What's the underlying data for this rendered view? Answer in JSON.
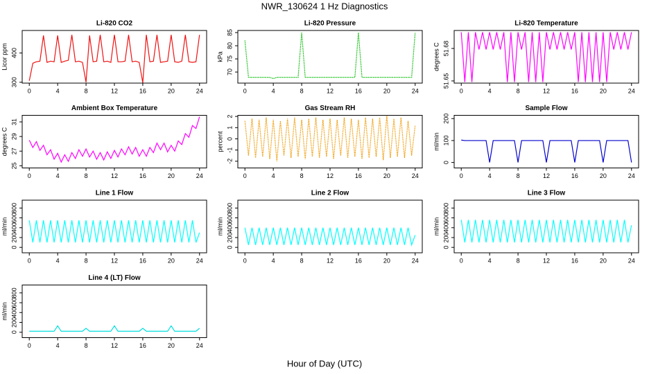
{
  "title": "NWR_130624  1 Hz Diagnostics",
  "xlabel": "Hour of Day (UTC)",
  "chart_data": [
    {
      "type": "line",
      "title": "Li-820 CO2",
      "ylabel": "Licor ppm",
      "color": "#ee1111",
      "x": [
        0,
        0.5,
        1,
        1.5,
        2,
        2.5,
        3,
        3.5,
        4,
        4.5,
        5,
        5.5,
        6,
        6.5,
        7,
        7.5,
        8,
        8.5,
        9,
        9.5,
        10,
        10.5,
        11,
        11.5,
        12,
        12.5,
        13,
        13.5,
        14,
        14.5,
        15,
        15.5,
        16,
        16.5,
        17,
        17.5,
        18,
        18.5,
        19,
        19.5,
        20,
        20.5,
        21,
        21.5,
        22,
        22.5,
        23,
        23.5,
        24
      ],
      "values": [
        305,
        365,
        370,
        372,
        460,
        368,
        372,
        370,
        460,
        368,
        372,
        375,
        462,
        370,
        372,
        368,
        300,
        460,
        370,
        372,
        462,
        370,
        372,
        368,
        462,
        370,
        370,
        372,
        462,
        370,
        372,
        368,
        298,
        462,
        370,
        372,
        462,
        368,
        370,
        372,
        462,
        370,
        368,
        372,
        462,
        370,
        368,
        370,
        462
      ],
      "xlim": [
        -1,
        25
      ],
      "xticks": [
        0,
        4,
        8,
        12,
        16,
        20,
        24
      ],
      "ylim": [
        297,
        477
      ],
      "yticks": [
        300,
        400
      ]
    },
    {
      "type": "line",
      "title": "Li-820 Pressure",
      "ylabel": "kPa",
      "color": "#00bb00",
      "linestyle": "dotted",
      "x": [
        0,
        0.5,
        1,
        1.5,
        2,
        2.5,
        3,
        3.5,
        4,
        4.5,
        5,
        5.5,
        6,
        6.5,
        7,
        7.5,
        8,
        8.5,
        9,
        9.5,
        10,
        10.5,
        11,
        11.5,
        12,
        12.5,
        13,
        13.5,
        14,
        14.5,
        15,
        15.5,
        16,
        16.5,
        17,
        17.5,
        18,
        18.5,
        19,
        19.5,
        20,
        20.5,
        21,
        21.5,
        22,
        22.5,
        23,
        23.5,
        24
      ],
      "values": [
        82,
        68,
        68,
        68,
        68,
        68,
        68,
        68,
        67.5,
        68,
        68,
        68,
        68,
        68,
        68,
        68,
        85,
        68,
        68,
        68,
        68,
        68,
        68,
        68,
        68,
        68,
        68,
        68,
        68,
        68,
        68,
        68,
        85,
        68,
        68,
        68,
        68,
        68,
        68,
        68,
        68,
        68,
        68,
        68,
        68,
        68,
        68,
        68,
        85
      ],
      "xlim": [
        -1,
        25
      ],
      "xticks": [
        0,
        4,
        8,
        12,
        16,
        20,
        24
      ],
      "ylim": [
        65.8,
        85.8
      ],
      "yticks": [
        70,
        75,
        80,
        85
      ]
    },
    {
      "type": "line",
      "title": "Li-820 Temperature",
      "ylabel": "degrees C",
      "color": "#ff00ff",
      "x": [
        0,
        0.5,
        1,
        1.5,
        2,
        2.5,
        3,
        3.5,
        4,
        4.5,
        5,
        5.5,
        6,
        6.5,
        7,
        7.5,
        8,
        8.5,
        9,
        9.5,
        10,
        10.5,
        11,
        11.5,
        12,
        12.5,
        13,
        13.5,
        14,
        14.5,
        15,
        15.5,
        16,
        16.5,
        17,
        17.5,
        18,
        18.5,
        19,
        19.5,
        20,
        20.5,
        21,
        21.5,
        22,
        22.5,
        23,
        23.5,
        24
      ],
      "values": [
        51.695,
        51.649,
        51.695,
        51.649,
        51.695,
        51.679,
        51.695,
        51.679,
        51.695,
        51.679,
        51.695,
        51.679,
        51.695,
        51.649,
        51.695,
        51.649,
        51.695,
        51.679,
        51.695,
        51.649,
        51.695,
        51.649,
        51.695,
        51.649,
        51.695,
        51.679,
        51.695,
        51.679,
        51.695,
        51.679,
        51.695,
        51.679,
        51.695,
        51.649,
        51.695,
        51.649,
        51.695,
        51.649,
        51.695,
        51.649,
        51.695,
        51.649,
        51.695,
        51.679,
        51.695,
        51.679,
        51.695,
        51.679,
        51.695
      ],
      "xlim": [
        -1,
        25
      ],
      "xticks": [
        0,
        4,
        8,
        12,
        16,
        20,
        24
      ],
      "ylim": [
        51.648,
        51.6966
      ],
      "yticks": [
        51.65,
        51.68
      ]
    },
    {
      "type": "line",
      "title": "Ambient Box Temperature",
      "ylabel": "degrees C",
      "color": "#ff00ff",
      "x": [
        0,
        0.5,
        1,
        1.5,
        2,
        2.5,
        3,
        3.5,
        4,
        4.5,
        5,
        5.5,
        6,
        6.5,
        7,
        7.5,
        8,
        8.5,
        9,
        9.5,
        10,
        10.5,
        11,
        11.5,
        12,
        12.5,
        13,
        13.5,
        14,
        14.5,
        15,
        15.5,
        16,
        16.5,
        17,
        17.5,
        18,
        18.5,
        19,
        19.5,
        20,
        20.5,
        21,
        21.5,
        22,
        22.5,
        23,
        23.5,
        24
      ],
      "values": [
        28.5,
        27.5,
        28.3,
        27.1,
        27.8,
        26.5,
        27.2,
        25.9,
        26.7,
        25.5,
        26.5,
        25.6,
        26.8,
        26,
        27.2,
        26.3,
        27.3,
        26.2,
        27,
        25.9,
        26.8,
        25.8,
        26.9,
        26,
        27.1,
        26.2,
        27.3,
        26.5,
        27.6,
        26.6,
        27.5,
        26.3,
        27.2,
        26.3,
        27.5,
        26.8,
        28.1,
        27.2,
        28.1,
        26.9,
        27.8,
        27,
        28.4,
        27.9,
        29.4,
        28.9,
        30.5,
        30.1,
        31.7
      ],
      "xlim": [
        -1,
        25
      ],
      "xticks": [
        0,
        4,
        8,
        12,
        16,
        20,
        24
      ],
      "ylim": [
        24.7,
        31.9
      ],
      "yticks": [
        25,
        27,
        29,
        31
      ]
    },
    {
      "type": "line",
      "title": "Gas Stream RH",
      "ylabel": "percent",
      "color": "#ee9900",
      "linestyle": "dotted",
      "x": [
        0,
        0.5,
        1,
        1.5,
        2,
        2.5,
        3,
        3.5,
        4,
        4.5,
        5,
        5.5,
        6,
        6.5,
        7,
        7.5,
        8,
        8.5,
        9,
        9.5,
        10,
        10.5,
        11,
        11.5,
        12,
        12.5,
        13,
        13.5,
        14,
        14.5,
        15,
        15.5,
        16,
        16.5,
        17,
        17.5,
        18,
        18.5,
        19,
        19.5,
        20,
        20.5,
        21,
        21.5,
        22,
        22.5,
        23,
        23.5,
        24
      ],
      "values": [
        1.6,
        -1.5,
        1.8,
        -1.7,
        1.7,
        -1.6,
        1.9,
        -1.8,
        1.7,
        -2,
        1.6,
        -1.5,
        1.8,
        -1.7,
        1.9,
        -1.6,
        1.7,
        -1.8,
        1.8,
        -1.6,
        1.9,
        -1.7,
        1.7,
        -1.6,
        1.8,
        -1.8,
        1.7,
        -1.5,
        1.9,
        -1.7,
        1.8,
        -1.6,
        1.7,
        -1.8,
        1.9,
        -1.7,
        1.8,
        -1.6,
        1.9,
        -1.9,
        2.1,
        -1.7,
        1.8,
        -1.6,
        1.9,
        -1.7,
        1.6,
        -1.5,
        1.2
      ],
      "xlim": [
        -1,
        25
      ],
      "xticks": [
        0,
        4,
        8,
        12,
        16,
        20,
        24
      ],
      "ylim": [
        -2.6,
        2.1
      ],
      "yticks": [
        -2,
        -1,
        0,
        1,
        2
      ]
    },
    {
      "type": "line",
      "title": "Sample Flow",
      "ylabel": "ml/min",
      "color": "#0000cc",
      "x": [
        0,
        0.5,
        1,
        1.5,
        2,
        2.5,
        3,
        3.5,
        4,
        4.5,
        5,
        5.5,
        6,
        6.5,
        7,
        7.5,
        8,
        8.5,
        9,
        9.5,
        10,
        10.5,
        11,
        11.5,
        12,
        12.5,
        13,
        13.5,
        14,
        14.5,
        15,
        15.5,
        16,
        16.5,
        17,
        17.5,
        18,
        18.5,
        19,
        19.5,
        20,
        20.5,
        21,
        21.5,
        22,
        22.5,
        23,
        23.5,
        24
      ],
      "values": [
        102,
        100,
        100,
        100,
        100,
        100,
        100,
        100,
        0,
        100,
        100,
        100,
        100,
        100,
        100,
        100,
        0,
        100,
        100,
        100,
        100,
        100,
        100,
        100,
        0,
        100,
        100,
        100,
        100,
        100,
        100,
        100,
        0,
        100,
        100,
        100,
        100,
        100,
        100,
        100,
        0,
        100,
        100,
        100,
        100,
        100,
        100,
        100,
        0
      ],
      "xlim": [
        -1,
        25
      ],
      "xticks": [
        0,
        4,
        8,
        12,
        16,
        20,
        24
      ],
      "ylim": [
        -25,
        215
      ],
      "yticks": [
        0,
        100,
        200
      ]
    },
    {
      "type": "line",
      "title": "Line 1 Flow",
      "ylabel": "ml/min",
      "color": "#00ffff",
      "x": [
        0,
        0.5,
        1,
        1.5,
        2,
        2.5,
        3,
        3.5,
        4,
        4.5,
        5,
        5.5,
        6,
        6.5,
        7,
        7.5,
        8,
        8.5,
        9,
        9.5,
        10,
        10.5,
        11,
        11.5,
        12,
        12.5,
        13,
        13.5,
        14,
        14.5,
        15,
        15.5,
        16,
        16.5,
        17,
        17.5,
        18,
        18.5,
        19,
        19.5,
        20,
        20.5,
        21,
        21.5,
        22,
        22.5,
        23,
        23.5,
        24
      ],
      "values": [
        550,
        100,
        550,
        100,
        550,
        100,
        550,
        100,
        550,
        100,
        550,
        100,
        550,
        100,
        550,
        100,
        550,
        100,
        550,
        100,
        550,
        100,
        550,
        100,
        550,
        100,
        550,
        100,
        550,
        100,
        550,
        100,
        550,
        100,
        550,
        100,
        550,
        100,
        550,
        100,
        550,
        100,
        550,
        100,
        550,
        100,
        550,
        100,
        300
      ],
      "xlim": [
        -1,
        25
      ],
      "xticks": [
        0,
        4,
        8,
        12,
        16,
        20,
        24
      ],
      "ylim": [
        -110,
        960
      ],
      "yticks": [
        0,
        200,
        400,
        600,
        800
      ]
    },
    {
      "type": "line",
      "title": "Line 2 Flow",
      "ylabel": "ml/min",
      "color": "#00ffff",
      "x": [
        0,
        0.5,
        1,
        1.5,
        2,
        2.5,
        3,
        3.5,
        4,
        4.5,
        5,
        5.5,
        6,
        6.5,
        7,
        7.5,
        8,
        8.5,
        9,
        9.5,
        10,
        10.5,
        11,
        11.5,
        12,
        12.5,
        13,
        13.5,
        14,
        14.5,
        15,
        15.5,
        16,
        16.5,
        17,
        17.5,
        18,
        18.5,
        19,
        19.5,
        20,
        20.5,
        21,
        21.5,
        22,
        22.5,
        23,
        23.5,
        24
      ],
      "values": [
        400,
        50,
        400,
        50,
        400,
        50,
        400,
        50,
        400,
        50,
        400,
        50,
        400,
        50,
        400,
        50,
        400,
        50,
        400,
        50,
        400,
        50,
        400,
        50,
        400,
        50,
        400,
        50,
        400,
        50,
        400,
        50,
        400,
        50,
        400,
        50,
        400,
        50,
        400,
        50,
        400,
        50,
        400,
        50,
        400,
        50,
        400,
        50,
        250
      ],
      "xlim": [
        -1,
        25
      ],
      "xticks": [
        0,
        4,
        8,
        12,
        16,
        20,
        24
      ],
      "ylim": [
        -110,
        960
      ],
      "yticks": [
        0,
        200,
        400,
        600,
        800
      ]
    },
    {
      "type": "line",
      "title": "Line 3 Flow",
      "ylabel": "ml/min",
      "color": "#00ffff",
      "x": [
        0,
        0.5,
        1,
        1.5,
        2,
        2.5,
        3,
        3.5,
        4,
        4.5,
        5,
        5.5,
        6,
        6.5,
        7,
        7.5,
        8,
        8.5,
        9,
        9.5,
        10,
        10.5,
        11,
        11.5,
        12,
        12.5,
        13,
        13.5,
        14,
        14.5,
        15,
        15.5,
        16,
        16.5,
        17,
        17.5,
        18,
        18.5,
        19,
        19.5,
        20,
        20.5,
        21,
        21.5,
        22,
        22.5,
        23,
        23.5,
        24
      ],
      "values": [
        560,
        100,
        560,
        100,
        560,
        100,
        560,
        100,
        560,
        100,
        560,
        100,
        560,
        100,
        560,
        100,
        560,
        100,
        560,
        100,
        560,
        100,
        560,
        100,
        560,
        100,
        560,
        100,
        560,
        100,
        560,
        100,
        560,
        100,
        560,
        100,
        560,
        100,
        560,
        100,
        560,
        100,
        560,
        100,
        560,
        100,
        560,
        100,
        450
      ],
      "xlim": [
        -1,
        25
      ],
      "xticks": [
        0,
        4,
        8,
        12,
        16,
        20,
        24
      ],
      "ylim": [
        -110,
        960
      ],
      "yticks": [
        0,
        200,
        400,
        600,
        800
      ]
    },
    {
      "type": "line",
      "title": "Line 4 (LT) Flow",
      "ylabel": "ml/min",
      "color": "#00dddd",
      "x": [
        0,
        0.5,
        1,
        1.5,
        2,
        2.5,
        3,
        3.5,
        4,
        4.5,
        5,
        5.5,
        6,
        6.5,
        7,
        7.5,
        8,
        8.5,
        9,
        9.5,
        10,
        10.5,
        11,
        11.5,
        12,
        12.5,
        13,
        13.5,
        14,
        14.5,
        15,
        15.5,
        16,
        16.5,
        17,
        17.5,
        18,
        18.5,
        19,
        19.5,
        20,
        20.5,
        21,
        21.5,
        22,
        22.5,
        23,
        23.5,
        24
      ],
      "values": [
        20,
        20,
        20,
        20,
        20,
        20,
        20,
        20,
        130,
        20,
        20,
        20,
        20,
        20,
        20,
        20,
        80,
        20,
        20,
        20,
        20,
        20,
        20,
        20,
        130,
        20,
        20,
        20,
        20,
        20,
        20,
        20,
        80,
        20,
        20,
        20,
        20,
        20,
        20,
        20,
        130,
        20,
        20,
        20,
        20,
        20,
        20,
        20,
        80
      ],
      "xlim": [
        -1,
        25
      ],
      "xticks": [
        0,
        4,
        8,
        12,
        16,
        20,
        24
      ],
      "ylim": [
        -110,
        960
      ],
      "yticks": [
        0,
        200,
        400,
        600,
        800
      ]
    }
  ]
}
